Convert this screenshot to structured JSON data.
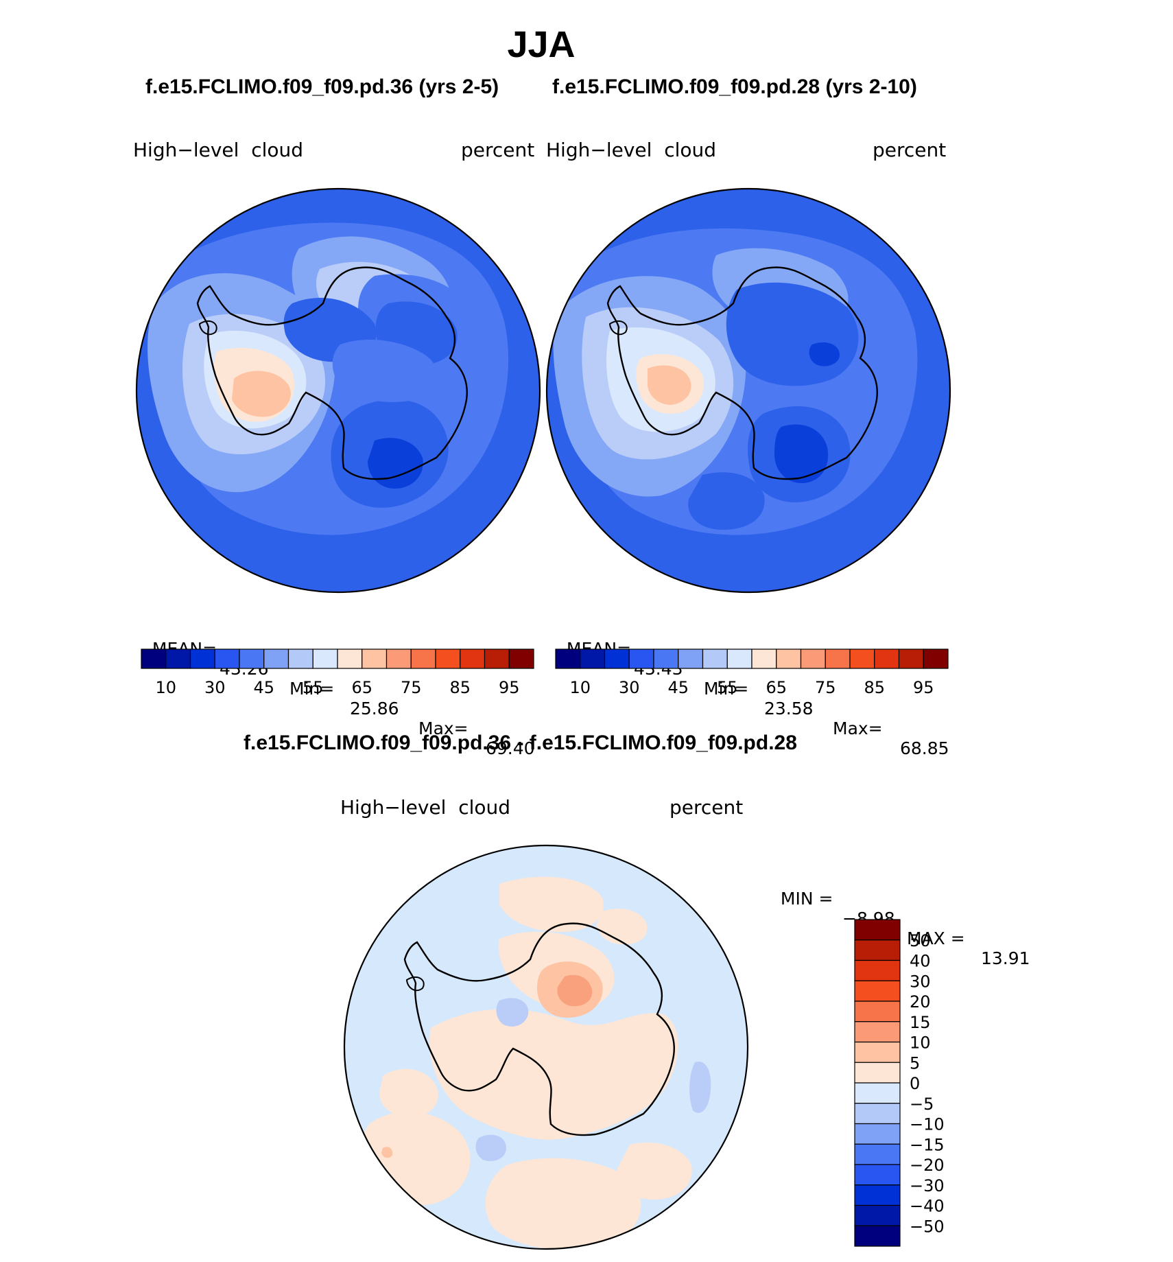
{
  "season": "JJA",
  "top_left": {
    "title": "f.e15.FCLIMO.f09_f09.pd.36 (yrs 2-5)",
    "variable": "High−level  cloud",
    "units": "percent",
    "stats": {
      "mean_label": "MEAN=",
      "mean": "43.26",
      "min_label": "Min=",
      "min": "25.86",
      "max_label": "Max=",
      "max": "69.40"
    }
  },
  "top_right": {
    "title": "f.e15.FCLIMO.f09_f09.pd.28 (yrs 2-10)",
    "variable": "High−level  cloud",
    "units": "percent",
    "stats": {
      "mean_label": "MEAN=",
      "mean": "43.43",
      "min_label": "Min=",
      "min": "23.58",
      "max_label": "Max=",
      "max": "68.85"
    }
  },
  "abs_colorbar": {
    "labels": [
      "10",
      "30",
      "45",
      "55",
      "65",
      "75",
      "85",
      "95"
    ],
    "colors": [
      "#00007f",
      "#0018a8",
      "#0031d6",
      "#2956f0",
      "#4a78f5",
      "#7fa2f7",
      "#b3c9f8",
      "#d9e8fc",
      "#fde6d5",
      "#fdc3a3",
      "#fa9a76",
      "#f7744a",
      "#f44f1f",
      "#e03510",
      "#b81e05",
      "#800000"
    ]
  },
  "bottom": {
    "title": "f.e15.FCLIMO.f09_f09.pd.36 - f.e15.FCLIMO.f09_f09.pd.28",
    "variable": "High−level  cloud",
    "units": "percent",
    "min_label": "MIN =",
    "min": "−8.98",
    "max_label": "MAX =",
    "max": "13.91"
  },
  "diff_colorbar": {
    "labels": [
      "50",
      "40",
      "30",
      "20",
      "15",
      "10",
      "5",
      "0",
      "−5",
      "−10",
      "−15",
      "−20",
      "−30",
      "−40",
      "−50"
    ],
    "colors": [
      "#800000",
      "#b81e05",
      "#e03510",
      "#f44f1f",
      "#f7744a",
      "#fa9a76",
      "#fdc3a3",
      "#fde6d5",
      "#d9e8fc",
      "#b3c9f8",
      "#7fa2f7",
      "#4a78f5",
      "#2956f0",
      "#0031d6",
      "#0018a8",
      "#00007f"
    ]
  },
  "colors": {
    "ocean_abs": "#2e61ea",
    "mid_blue": "#4d7af2",
    "light_blue": "#85a8f6",
    "pale_blue": "#b9cdf8",
    "very_pale_blue": "#d9e8fc",
    "peach": "#fde6d5",
    "salmon": "#fdc3a3",
    "orange": "#f9a07c",
    "deep_blue": "#0b3fd9",
    "diff_base": "#d6e8fc"
  }
}
